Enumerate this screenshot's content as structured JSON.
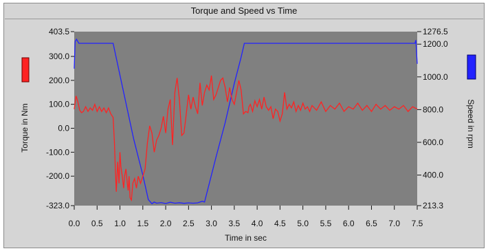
{
  "chart_data": {
    "type": "line",
    "title": "Torque and Speed vs Time",
    "xlabel": "Time in sec",
    "ylabel_left": "Torque in Nm",
    "ylabel_right": "Speed in rpm",
    "xlim": [
      0.0,
      7.5
    ],
    "ylim_left": [
      -323.0,
      403.5
    ],
    "ylim_right": [
      213.3,
      1276.5
    ],
    "x_ticks": [
      "0.0",
      "0.5",
      "1.0",
      "1.5",
      "2.0",
      "2.5",
      "3.0",
      "3.5",
      "4.0",
      "4.5",
      "5.0",
      "5.5",
      "6.0",
      "6.5",
      "7.0",
      "7.5"
    ],
    "left_ticks": [
      {
        "value": 403.5,
        "label": "403.5"
      },
      {
        "value": 300.0,
        "label": "300.0"
      },
      {
        "value": 200.0,
        "label": "200.0"
      },
      {
        "value": 100.0,
        "label": "100.0"
      },
      {
        "value": 0.0,
        "label": "0.0"
      },
      {
        "value": -100.0,
        "label": "-100.0"
      },
      {
        "value": -200.0,
        "label": "-200.0"
      },
      {
        "value": -323.0,
        "label": "-323.0"
      }
    ],
    "right_ticks": [
      {
        "value": 1276.5,
        "label": "1276.5"
      },
      {
        "value": 1200.0,
        "label": "1200.0"
      },
      {
        "value": 1000.0,
        "label": "1000.0"
      },
      {
        "value": 800.0,
        "label": "800.0"
      },
      {
        "value": 600.0,
        "label": "600.0"
      },
      {
        "value": 400.0,
        "label": "400.0"
      },
      {
        "value": 213.3,
        "label": "213.3"
      }
    ],
    "colors": {
      "plot_bg": "#808080",
      "panel_bg": "#d5d5d5",
      "torque": "#ff2222",
      "speed": "#2222ff"
    },
    "series": [
      {
        "axis": "left",
        "color": "#ff2222",
        "points": [
          [
            0.0,
            80
          ],
          [
            0.04,
            135
          ],
          [
            0.08,
            110
          ],
          [
            0.12,
            75
          ],
          [
            0.16,
            65
          ],
          [
            0.2,
            70
          ],
          [
            0.25,
            90
          ],
          [
            0.3,
            70
          ],
          [
            0.35,
            85
          ],
          [
            0.4,
            75
          ],
          [
            0.45,
            100
          ],
          [
            0.5,
            70
          ],
          [
            0.55,
            90
          ],
          [
            0.6,
            70
          ],
          [
            0.65,
            85
          ],
          [
            0.7,
            65
          ],
          [
            0.75,
            85
          ],
          [
            0.8,
            60
          ],
          [
            0.85,
            45
          ],
          [
            0.88,
            -60
          ],
          [
            0.9,
            -180
          ],
          [
            0.92,
            -265
          ],
          [
            0.95,
            -140
          ],
          [
            0.98,
            -230
          ],
          [
            1.0,
            -100
          ],
          [
            1.02,
            -160
          ],
          [
            1.05,
            -200
          ],
          [
            1.08,
            -250
          ],
          [
            1.1,
            -200
          ],
          [
            1.13,
            -170
          ],
          [
            1.16,
            -230
          ],
          [
            1.18,
            -260
          ],
          [
            1.2,
            -200
          ],
          [
            1.22,
            -290
          ],
          [
            1.25,
            -300
          ],
          [
            1.28,
            -230
          ],
          [
            1.32,
            -210
          ],
          [
            1.36,
            -250
          ],
          [
            1.4,
            -200
          ],
          [
            1.45,
            -230
          ],
          [
            1.5,
            -200
          ],
          [
            1.55,
            -170
          ],
          [
            1.6,
            -60
          ],
          [
            1.65,
            10
          ],
          [
            1.7,
            -20
          ],
          [
            1.75,
            -100
          ],
          [
            1.8,
            -50
          ],
          [
            1.85,
            -30
          ],
          [
            1.9,
            0
          ],
          [
            1.95,
            50
          ],
          [
            2.0,
            -20
          ],
          [
            2.05,
            80
          ],
          [
            2.1,
            120
          ],
          [
            2.15,
            -70
          ],
          [
            2.2,
            150
          ],
          [
            2.25,
            210
          ],
          [
            2.3,
            120
          ],
          [
            2.35,
            -30
          ],
          [
            2.4,
            -20
          ],
          [
            2.45,
            60
          ],
          [
            2.5,
            140
          ],
          [
            2.55,
            80
          ],
          [
            2.6,
            130
          ],
          [
            2.65,
            90
          ],
          [
            2.7,
            60
          ],
          [
            2.75,
            190
          ],
          [
            2.8,
            95
          ],
          [
            2.85,
            150
          ],
          [
            2.9,
            180
          ],
          [
            2.95,
            160
          ],
          [
            3.0,
            220
          ],
          [
            3.05,
            120
          ],
          [
            3.1,
            140
          ],
          [
            3.2,
            200
          ],
          [
            3.25,
            210
          ],
          [
            3.3,
            170
          ],
          [
            3.35,
            110
          ],
          [
            3.4,
            170
          ],
          [
            3.45,
            120
          ],
          [
            3.5,
            100
          ],
          [
            3.55,
            150
          ],
          [
            3.6,
            200
          ],
          [
            3.65,
            160
          ],
          [
            3.7,
            60
          ],
          [
            3.75,
            70
          ],
          [
            3.8,
            65
          ],
          [
            3.82,
            90
          ],
          [
            3.85,
            100
          ],
          [
            3.9,
            70
          ],
          [
            3.95,
            115
          ],
          [
            4.0,
            90
          ],
          [
            4.05,
            120
          ],
          [
            4.1,
            80
          ],
          [
            4.15,
            130
          ],
          [
            4.2,
            90
          ],
          [
            4.25,
            75
          ],
          [
            4.3,
            90
          ],
          [
            4.35,
            40
          ],
          [
            4.4,
            80
          ],
          [
            4.45,
            70
          ],
          [
            4.5,
            30
          ],
          [
            4.55,
            60
          ],
          [
            4.6,
            150
          ],
          [
            4.65,
            80
          ],
          [
            4.7,
            100
          ],
          [
            4.75,
            85
          ],
          [
            4.8,
            110
          ],
          [
            4.85,
            70
          ],
          [
            4.9,
            95
          ],
          [
            4.95,
            75
          ],
          [
            5.0,
            105
          ],
          [
            5.05,
            80
          ],
          [
            5.1,
            90
          ],
          [
            5.15,
            70
          ],
          [
            5.2,
            95
          ],
          [
            5.3,
            75
          ],
          [
            5.4,
            110
          ],
          [
            5.5,
            70
          ],
          [
            5.6,
            95
          ],
          [
            5.7,
            80
          ],
          [
            5.8,
            105
          ],
          [
            5.9,
            70
          ],
          [
            6.0,
            90
          ],
          [
            6.1,
            80
          ],
          [
            6.2,
            105
          ],
          [
            6.3,
            75
          ],
          [
            6.4,
            95
          ],
          [
            6.5,
            70
          ],
          [
            6.6,
            100
          ],
          [
            6.7,
            80
          ],
          [
            6.8,
            95
          ],
          [
            6.9,
            75
          ],
          [
            7.0,
            90
          ],
          [
            7.1,
            80
          ],
          [
            7.2,
            95
          ],
          [
            7.3,
            70
          ],
          [
            7.4,
            90
          ],
          [
            7.5,
            80
          ]
        ]
      },
      {
        "axis": "right",
        "color": "#2222ff",
        "points": [
          [
            0.0,
            1050
          ],
          [
            0.02,
            1215
          ],
          [
            0.05,
            1230
          ],
          [
            0.1,
            1205
          ],
          [
            0.2,
            1205
          ],
          [
            0.5,
            1205
          ],
          [
            0.85,
            1205
          ],
          [
            1.1,
            880
          ],
          [
            1.3,
            620
          ],
          [
            1.5,
            400
          ],
          [
            1.62,
            250
          ],
          [
            1.7,
            225
          ],
          [
            1.75,
            235
          ],
          [
            1.8,
            228
          ],
          [
            1.9,
            232
          ],
          [
            2.0,
            226
          ],
          [
            2.1,
            234
          ],
          [
            2.2,
            228
          ],
          [
            2.3,
            231
          ],
          [
            2.4,
            227
          ],
          [
            2.5,
            230
          ],
          [
            2.6,
            228
          ],
          [
            2.7,
            230
          ],
          [
            2.8,
            240
          ],
          [
            2.85,
            235
          ],
          [
            3.1,
            510
          ],
          [
            3.3,
            720
          ],
          [
            3.5,
            960
          ],
          [
            3.65,
            1120
          ],
          [
            3.72,
            1205
          ],
          [
            4.0,
            1205
          ],
          [
            5.0,
            1205
          ],
          [
            6.0,
            1205
          ],
          [
            7.0,
            1205
          ],
          [
            7.45,
            1205
          ],
          [
            7.47,
            1225
          ],
          [
            7.5,
            1080
          ]
        ]
      }
    ]
  }
}
